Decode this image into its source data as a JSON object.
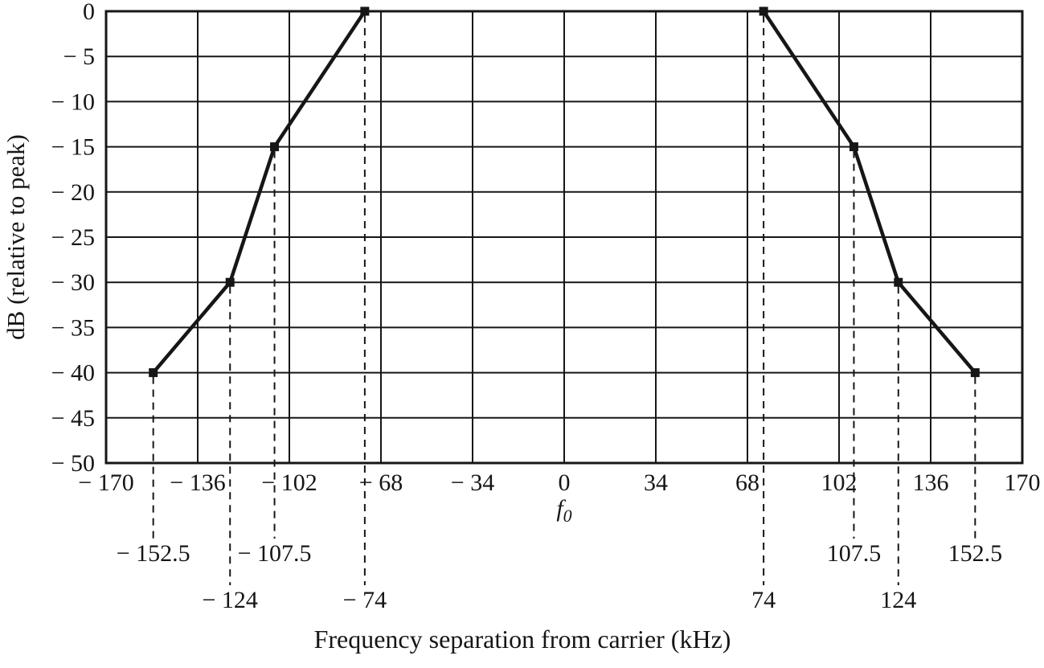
{
  "figure": {
    "background": "#ffffff",
    "ink_color": "#161616"
  },
  "chart_data": {
    "type": "line",
    "title": "",
    "xlabel": "Frequency separation from carrier (kHz)",
    "ylabel": "dB (relative to peak)",
    "xlim": [
      -170,
      170
    ],
    "ylim": [
      -50,
      0
    ],
    "grid": true,
    "legend": false,
    "x_ticks": [
      -170,
      -136,
      -102,
      -68,
      -34,
      0,
      34,
      68,
      102,
      136,
      170
    ],
    "x_tick_labels": [
      "− 170",
      "− 136",
      "− 102",
      "− 68",
      "− 34",
      "0",
      "34",
      "68",
      "102",
      "136",
      "170"
    ],
    "y_ticks": [
      0,
      -5,
      -10,
      -15,
      -20,
      -25,
      -30,
      -35,
      -40,
      -45,
      -50
    ],
    "y_tick_labels": [
      "0",
      "− 5",
      "− 10",
      "− 15",
      "− 20",
      "− 25",
      "− 30",
      "− 35",
      "− 40",
      "− 45",
      "− 50"
    ],
    "carrier": {
      "base": "f",
      "sub": "0"
    },
    "series": [
      {
        "name": "left-mask",
        "points": [
          [
            -152.5,
            -40
          ],
          [
            -124,
            -30
          ],
          [
            -107.5,
            -15
          ],
          [
            -74,
            0
          ]
        ]
      },
      {
        "name": "right-mask",
        "points": [
          [
            74,
            0
          ],
          [
            107.5,
            -15
          ],
          [
            124,
            -30
          ],
          [
            152.5,
            -40
          ]
        ]
      }
    ],
    "annotations": [
      {
        "x": -152.5,
        "y": -40,
        "label": "− 152.5",
        "row": 1
      },
      {
        "x": -124,
        "y": -30,
        "label": "− 124",
        "row": 2
      },
      {
        "x": -107.5,
        "y": -15,
        "label": "− 107.5",
        "row": 1
      },
      {
        "x": -74,
        "y": 0,
        "label": "− 74",
        "row": 2
      },
      {
        "x": 74,
        "y": 0,
        "label": "74",
        "row": 2
      },
      {
        "x": 107.5,
        "y": -15,
        "label": "107.5",
        "row": 1
      },
      {
        "x": 124,
        "y": -30,
        "label": "124",
        "row": 2
      },
      {
        "x": 152.5,
        "y": -40,
        "label": "152.5",
        "row": 1
      }
    ]
  }
}
